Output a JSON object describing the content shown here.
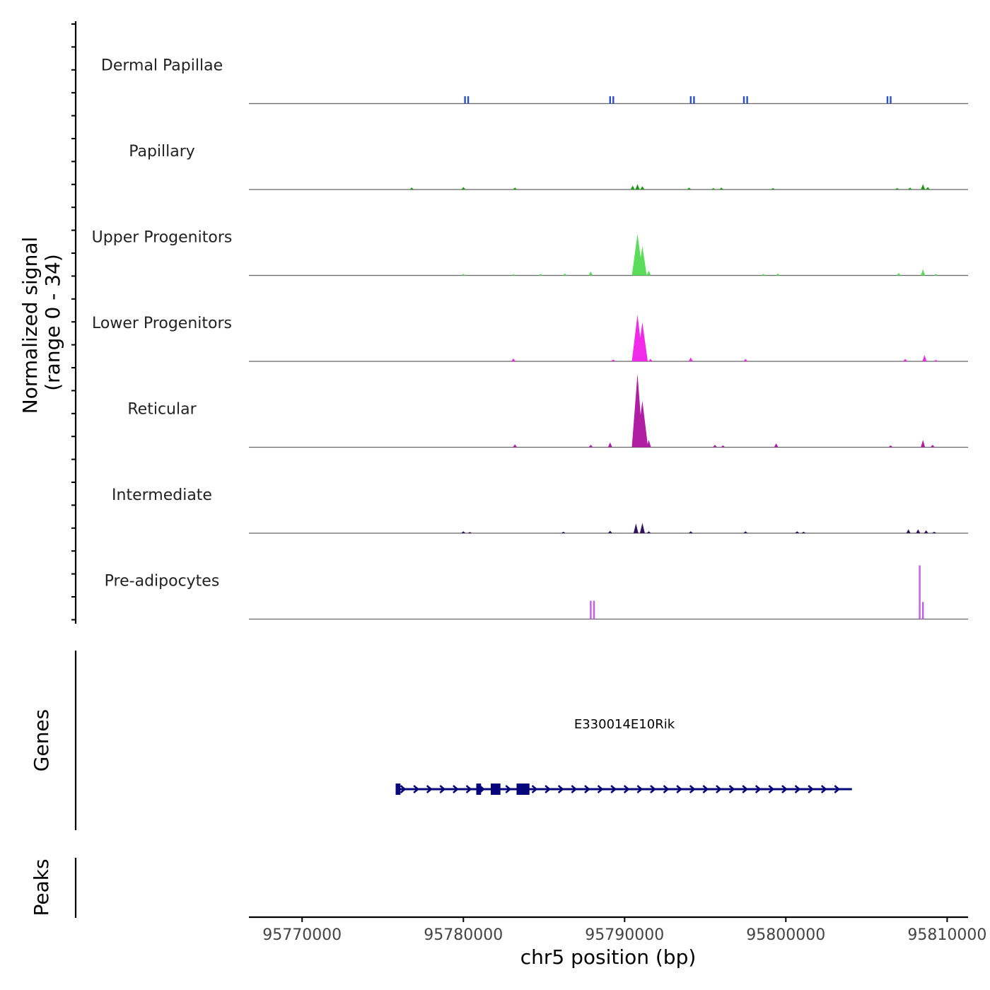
{
  "chart_data": {
    "type": "area",
    "title": "",
    "ylabel_line1": "Normalized signal",
    "ylabel_line2": "(range 0 - 34)",
    "y_range": [
      0,
      34
    ],
    "xlabel": "chr5 position (bp)",
    "xlim": [
      95766700,
      95811300
    ],
    "x_ticks": [
      95770000,
      95780000,
      95790000,
      95800000,
      95810000
    ],
    "x_tick_labels": [
      "95770000",
      "95780000",
      "95790000",
      "95800000",
      "95810000"
    ],
    "series": [
      {
        "name": "Dermal Papillae",
        "color": "#2b4fc6",
        "shape": "bars",
        "values": [
          [
            95780100,
            3
          ],
          [
            95780300,
            3
          ],
          [
            95789100,
            3
          ],
          [
            95789300,
            3
          ],
          [
            95794100,
            3
          ],
          [
            95794300,
            3
          ],
          [
            95797400,
            3
          ],
          [
            95797600,
            3
          ],
          [
            95806300,
            3
          ],
          [
            95806500,
            3
          ]
        ]
      },
      {
        "name": "Papillary",
        "color": "#1a9a10",
        "shape": "area",
        "values": [
          [
            95776800,
            0.8
          ],
          [
            95780000,
            1
          ],
          [
            95783200,
            0.8
          ],
          [
            95790500,
            1.6
          ],
          [
            95790800,
            2.2
          ],
          [
            95791100,
            1.4
          ],
          [
            95794000,
            0.8
          ],
          [
            95795500,
            0.6
          ],
          [
            95796000,
            0.8
          ],
          [
            95799200,
            0.6
          ],
          [
            95806900,
            0.6
          ],
          [
            95807700,
            0.8
          ],
          [
            95808500,
            2.2
          ],
          [
            95808800,
            1
          ]
        ]
      },
      {
        "name": "Upper Progenitors",
        "color": "#5bdc5b",
        "shape": "area",
        "values": [
          [
            95780000,
            0.6
          ],
          [
            95783100,
            0.5
          ],
          [
            95784800,
            0.6
          ],
          [
            95786300,
            0.8
          ],
          [
            95787900,
            1.6
          ],
          [
            95790800,
            17
          ],
          [
            95791100,
            12
          ],
          [
            95791500,
            2
          ],
          [
            95798600,
            0.6
          ],
          [
            95799500,
            0.8
          ],
          [
            95807000,
            1
          ],
          [
            95808500,
            2.6
          ],
          [
            95809300,
            0.6
          ]
        ]
      },
      {
        "name": "Lower Progenitors",
        "color": "#f02ae8",
        "shape": "area",
        "values": [
          [
            95783100,
            1.2
          ],
          [
            95789300,
            0.8
          ],
          [
            95790800,
            19
          ],
          [
            95791100,
            16
          ],
          [
            95791600,
            1
          ],
          [
            95794100,
            1.6
          ],
          [
            95797500,
            1
          ],
          [
            95807400,
            1
          ],
          [
            95808600,
            2.6
          ],
          [
            95809300,
            0.6
          ]
        ]
      },
      {
        "name": "Reticular",
        "color": "#b01ea4",
        "shape": "area",
        "values": [
          [
            95783200,
            1.2
          ],
          [
            95787900,
            1
          ],
          [
            95789100,
            2
          ],
          [
            95790800,
            30
          ],
          [
            95791100,
            19
          ],
          [
            95791500,
            3
          ],
          [
            95795600,
            1
          ],
          [
            95796100,
            0.8
          ],
          [
            95799400,
            1.6
          ],
          [
            95806500,
            0.8
          ],
          [
            95808500,
            3
          ],
          [
            95809100,
            1
          ]
        ]
      },
      {
        "name": "Intermediate",
        "color": "#33125e",
        "shape": "area",
        "values": [
          [
            95780000,
            0.8
          ],
          [
            95780400,
            0.5
          ],
          [
            95786200,
            0.6
          ],
          [
            95789100,
            1
          ],
          [
            95790700,
            4
          ],
          [
            95791100,
            4.2
          ],
          [
            95791500,
            0.8
          ],
          [
            95794100,
            0.8
          ],
          [
            95797500,
            0.8
          ],
          [
            95800700,
            0.8
          ],
          [
            95801100,
            0.6
          ],
          [
            95807600,
            1.6
          ],
          [
            95808200,
            1.6
          ],
          [
            95808700,
            1.2
          ],
          [
            95809200,
            0.6
          ]
        ]
      },
      {
        "name": "Pre-adipocytes",
        "color": "#c35ce8",
        "shape": "bars",
        "values": [
          [
            95787900,
            7.5
          ],
          [
            95788100,
            7.5
          ],
          [
            95808300,
            22
          ],
          [
            95808500,
            7
          ]
        ]
      }
    ]
  },
  "genes_track": {
    "label": "Genes",
    "gene_name": "E330014E10Rik",
    "strand": "+",
    "gene_start": 95775800,
    "gene_end": 95804100,
    "exons": [
      [
        95775800,
        95776100
      ],
      [
        95780800,
        95781100
      ],
      [
        95781700,
        95782300
      ],
      [
        95783300,
        95784100
      ]
    ],
    "color": "#06067a"
  },
  "peaks_track": {
    "label": "Peaks"
  }
}
